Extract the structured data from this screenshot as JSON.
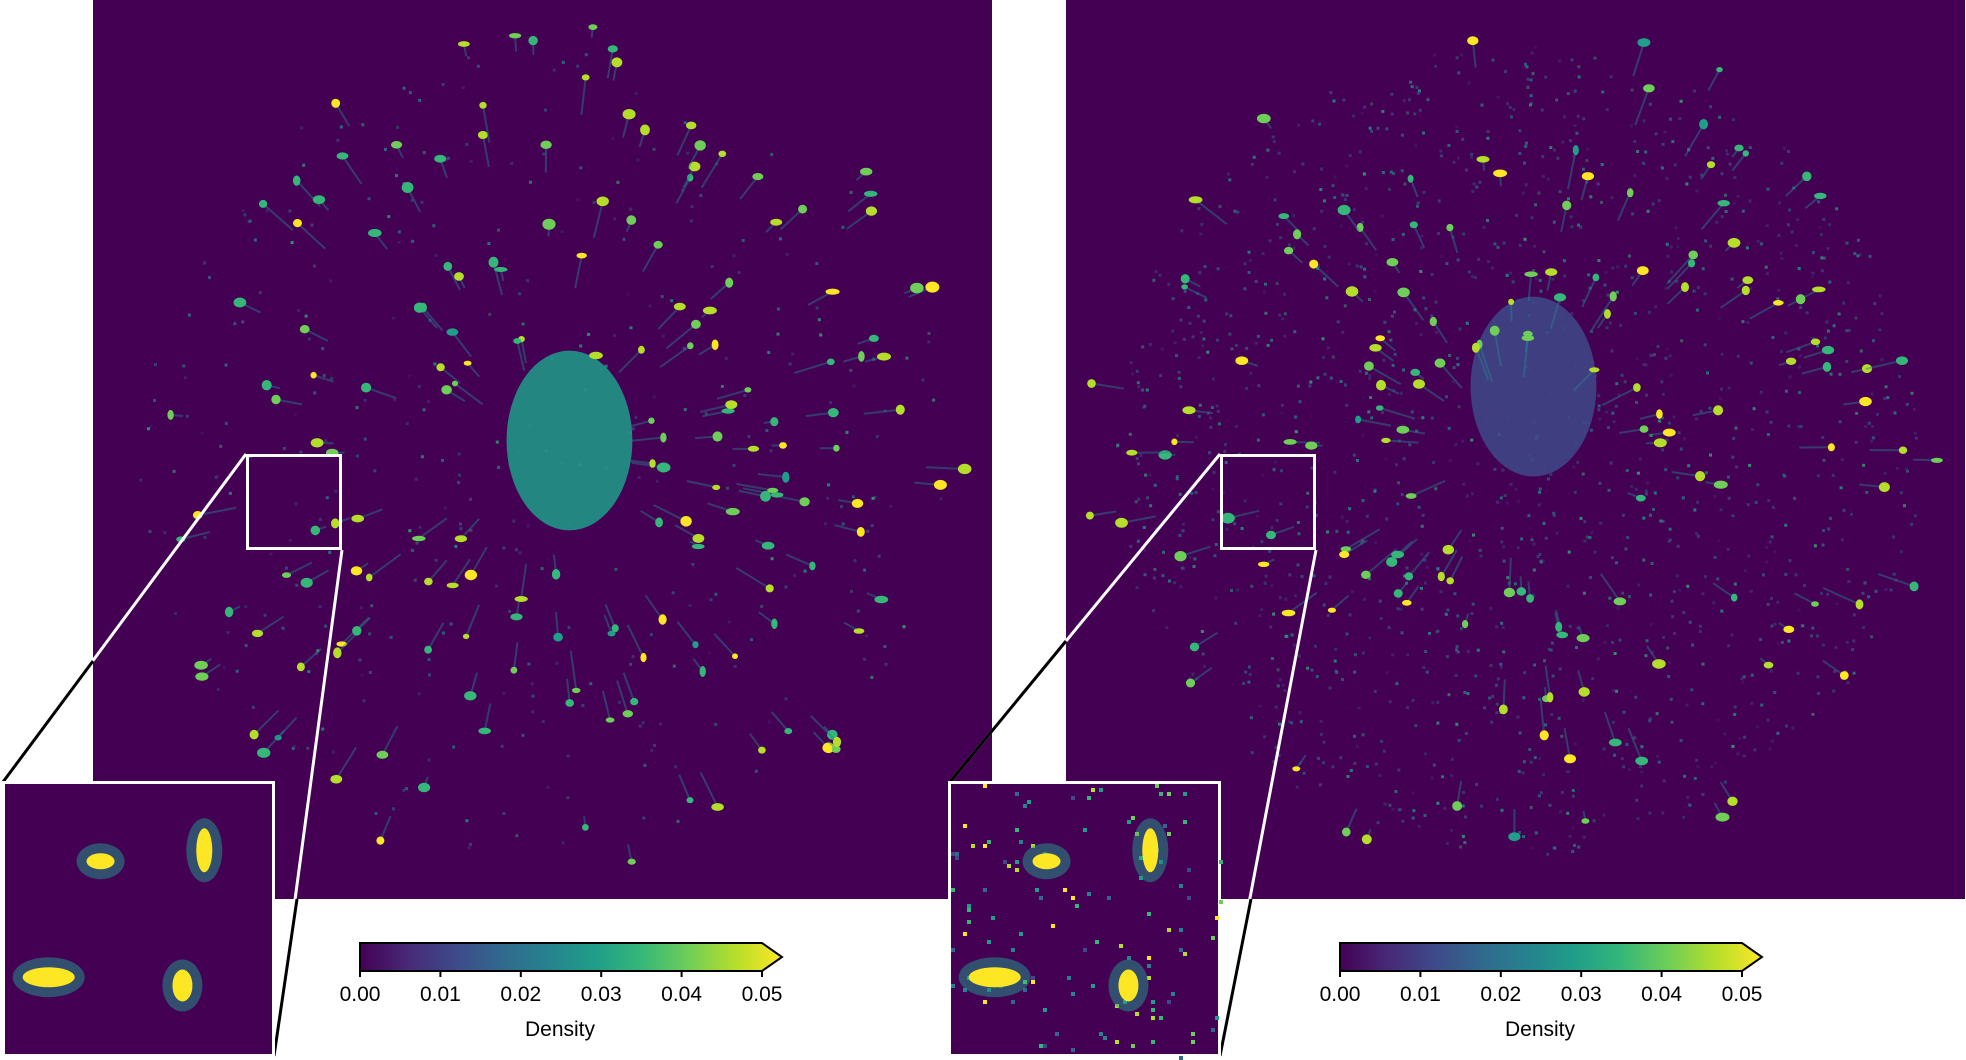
{
  "colors": {
    "viridis": [
      "#440154",
      "#482878",
      "#3e4989",
      "#31688e",
      "#26828e",
      "#1f9e89",
      "#35b779",
      "#6ece58",
      "#b5de2b",
      "#fde725"
    ],
    "roi_outline": "#ffffff",
    "leader_line": "#000000"
  },
  "chart_data": [
    {
      "type": "heatmap",
      "panel": "left",
      "description_of_content": "density map",
      "central_cluster": {
        "x": 0.53,
        "y": 0.49,
        "value": 0.03
      },
      "spots_seed": 11,
      "spot_count": 170,
      "spot_value_range": [
        0.03,
        0.05
      ],
      "noise_level": "low",
      "colorbar": {
        "label": "Density",
        "ticks": [
          "0.00",
          "0.01",
          "0.02",
          "0.03",
          "0.04",
          "0.05"
        ],
        "vmin": 0.0,
        "vmax": 0.05,
        "extend": "max"
      }
    },
    {
      "type": "heatmap",
      "panel": "right",
      "central_cluster": {
        "x": 0.52,
        "y": 0.43,
        "value": 0.012
      },
      "spots_seed": 29,
      "spot_count": 150,
      "spot_value_range": [
        0.03,
        0.05
      ],
      "noise_level": "high",
      "colorbar": {
        "label": "Density",
        "ticks": [
          "0.00",
          "0.01",
          "0.02",
          "0.03",
          "0.04",
          "0.05"
        ],
        "vmin": 0.0,
        "vmax": 0.05,
        "extend": "max"
      }
    }
  ],
  "colorbars": [
    {
      "label": "Density",
      "ticks": [
        "0.00",
        "0.01",
        "0.02",
        "0.03",
        "0.04",
        "0.05"
      ]
    },
    {
      "label": "Density",
      "ticks": [
        "0.00",
        "0.01",
        "0.02",
        "0.03",
        "0.04",
        "0.05"
      ]
    }
  ]
}
